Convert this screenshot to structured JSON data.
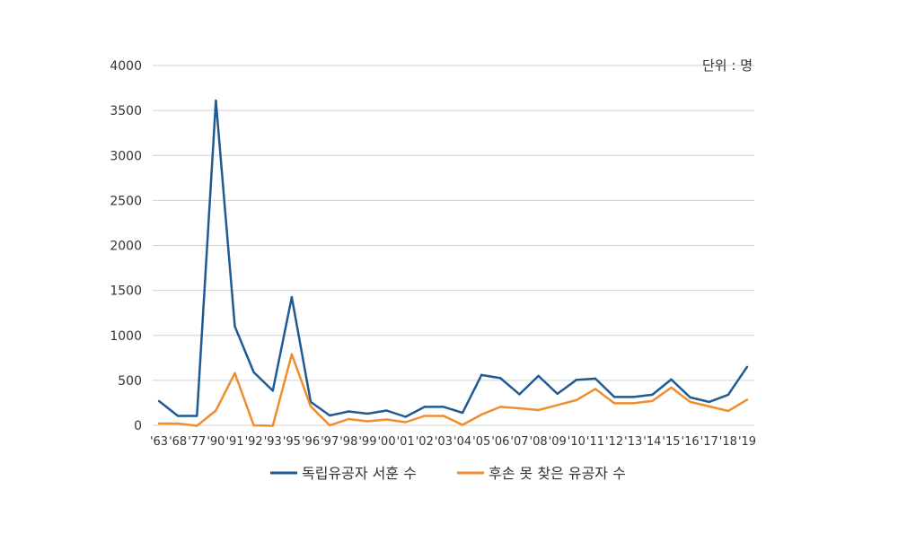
{
  "chart_data": {
    "type": "line",
    "unit_label": "단위 : 명",
    "categories": [
      "'63",
      "'68",
      "'77",
      "'90",
      "'91",
      "'92",
      "'93",
      "'95",
      "'96",
      "'97",
      "'98",
      "'99",
      "'00",
      "'01",
      "'02",
      "'03",
      "'04",
      "'05",
      "'06",
      "'07",
      "'08",
      "'09",
      "'10",
      "'11",
      "'12",
      "'13",
      "'14",
      "'15",
      "'16",
      "'17",
      "'18",
      "'19"
    ],
    "y_ticks": [
      "0",
      "500",
      "1000",
      "1500",
      "2000",
      "2500",
      "3000",
      "3500",
      "4000"
    ],
    "ylim": [
      0,
      4000
    ],
    "grid": true,
    "legend_position": "bottom",
    "series": [
      {
        "name": "독립유공자 서훈 수",
        "color": "#1f5a94",
        "values": [
          270,
          105,
          105,
          3610,
          1100,
          590,
          385,
          1425,
          260,
          110,
          155,
          130,
          165,
          95,
          205,
          205,
          140,
          560,
          525,
          345,
          550,
          350,
          505,
          520,
          315,
          315,
          340,
          510,
          310,
          260,
          340,
          650
        ]
      },
      {
        "name": "후손 못 찾은 유공자 수",
        "color": "#f08d2c",
        "values": [
          20,
          20,
          -5,
          165,
          580,
          0,
          -5,
          790,
          210,
          0,
          70,
          45,
          65,
          35,
          105,
          105,
          5,
          120,
          205,
          190,
          170,
          225,
          280,
          405,
          245,
          245,
          270,
          420,
          260,
          210,
          160,
          285
        ]
      }
    ]
  }
}
